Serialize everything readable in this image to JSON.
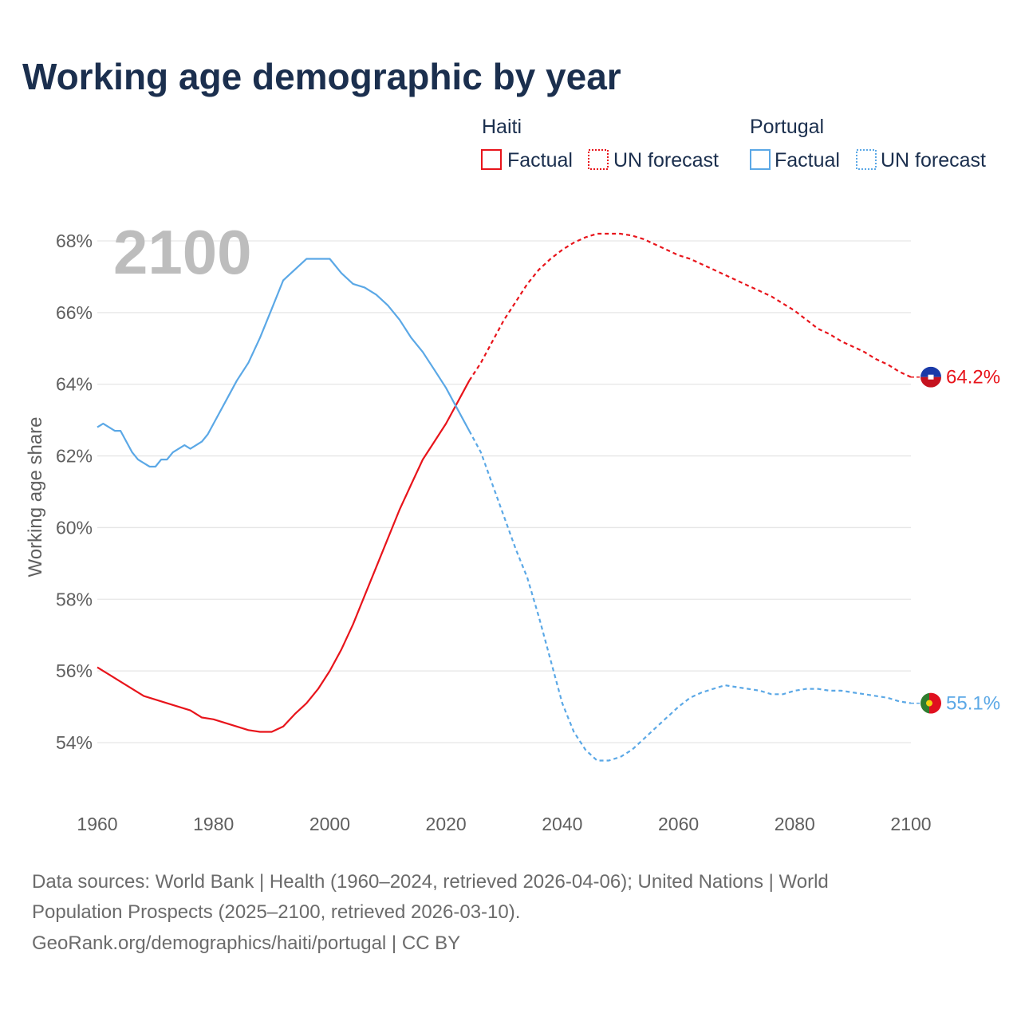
{
  "title": "Working age demographic by year",
  "year_display": "2100",
  "legend": {
    "groups": [
      {
        "name": "Haiti",
        "color": "#e8141b",
        "items": [
          "Factual",
          "UN forecast"
        ]
      },
      {
        "name": "Portugal",
        "color": "#5ba8e6",
        "items": [
          "Factual",
          "UN forecast"
        ]
      }
    ]
  },
  "y_axis_label": "Working age share",
  "end_labels": {
    "haiti": "64.2%",
    "portugal": "55.1%"
  },
  "source": {
    "line1": "Data sources: World Bank | Health (1960–2024, retrieved 2026-04-06); United Nations | World",
    "line2": "Population Prospects (2025–2100, retrieved 2026-03-10).",
    "line3": "GeoRank.org/demographics/haiti/portugal | CC BY"
  },
  "colors": {
    "haiti": "#e8141b",
    "portugal": "#5ba8e6",
    "title": "#1b2f4e",
    "grid": "#e6e6e6"
  },
  "chart_data": {
    "type": "line",
    "title": "Working age demographic by year",
    "xlabel": "",
    "ylabel": "Working age share",
    "xlim": [
      1960,
      2100
    ],
    "ylim": [
      53,
      68.2
    ],
    "x_ticks": [
      1960,
      1980,
      2000,
      2020,
      2040,
      2060,
      2080,
      2100
    ],
    "x_tick_labels": [
      "1960",
      "1980",
      "2000",
      "2020",
      "2040",
      "2060",
      "2080",
      "2100"
    ],
    "y_ticks": [
      54,
      56,
      58,
      60,
      62,
      64,
      66,
      68
    ],
    "y_tick_labels": [
      "54%",
      "56%",
      "58%",
      "60%",
      "62%",
      "64%",
      "66%",
      "68%"
    ],
    "grid": true,
    "legend_position": "top-right",
    "series": [
      {
        "name": "Haiti",
        "color": "#e8141b",
        "factual": {
          "x": [
            1960,
            1962,
            1964,
            1966,
            1968,
            1970,
            1972,
            1974,
            1976,
            1978,
            1980,
            1982,
            1984,
            1986,
            1988,
            1990,
            1992,
            1994,
            1996,
            1998,
            2000,
            2002,
            2004,
            2006,
            2008,
            2010,
            2012,
            2014,
            2016,
            2018,
            2020,
            2022,
            2024
          ],
          "y": [
            56.1,
            55.9,
            55.7,
            55.5,
            55.3,
            55.2,
            55.1,
            55.0,
            54.9,
            54.7,
            54.65,
            54.55,
            54.45,
            54.35,
            54.3,
            54.3,
            54.45,
            54.8,
            55.1,
            55.5,
            56.0,
            56.6,
            57.3,
            58.1,
            58.9,
            59.7,
            60.5,
            61.2,
            61.9,
            62.4,
            62.9,
            63.5,
            64.1
          ]
        },
        "forecast": {
          "x": [
            2024,
            2026,
            2028,
            2030,
            2032,
            2034,
            2036,
            2038,
            2040,
            2042,
            2044,
            2046,
            2048,
            2050,
            2052,
            2054,
            2056,
            2058,
            2060,
            2062,
            2064,
            2066,
            2068,
            2070,
            2072,
            2074,
            2076,
            2078,
            2080,
            2082,
            2084,
            2086,
            2088,
            2090,
            2092,
            2094,
            2096,
            2098,
            2100
          ],
          "y": [
            64.1,
            64.6,
            65.2,
            65.8,
            66.3,
            66.8,
            67.2,
            67.5,
            67.75,
            67.95,
            68.1,
            68.2,
            68.2,
            68.2,
            68.15,
            68.05,
            67.9,
            67.75,
            67.6,
            67.5,
            67.35,
            67.2,
            67.05,
            66.9,
            66.75,
            66.6,
            66.45,
            66.25,
            66.05,
            65.8,
            65.55,
            65.4,
            65.2,
            65.05,
            64.9,
            64.7,
            64.55,
            64.35,
            64.2
          ]
        },
        "end_value": 64.2
      },
      {
        "name": "Portugal",
        "color": "#5ba8e6",
        "factual": {
          "x": [
            1960,
            1961,
            1962,
            1963,
            1964,
            1965,
            1966,
            1967,
            1968,
            1969,
            1970,
            1971,
            1972,
            1973,
            1974,
            1975,
            1976,
            1977,
            1978,
            1979,
            1980,
            1982,
            1984,
            1986,
            1988,
            1990,
            1992,
            1994,
            1996,
            1998,
            2000,
            2002,
            2004,
            2006,
            2008,
            2010,
            2012,
            2014,
            2016,
            2018,
            2020,
            2022,
            2024
          ],
          "y": [
            62.8,
            62.9,
            62.8,
            62.7,
            62.7,
            62.4,
            62.1,
            61.9,
            61.8,
            61.7,
            61.7,
            61.9,
            61.9,
            62.1,
            62.2,
            62.3,
            62.2,
            62.3,
            62.4,
            62.6,
            62.9,
            63.5,
            64.1,
            64.6,
            65.3,
            66.1,
            66.9,
            67.2,
            67.5,
            67.5,
            67.5,
            67.1,
            66.8,
            66.7,
            66.5,
            66.2,
            65.8,
            65.3,
            64.9,
            64.4,
            63.9,
            63.3,
            62.7
          ]
        },
        "forecast": {
          "x": [
            2024,
            2026,
            2028,
            2030,
            2032,
            2034,
            2036,
            2038,
            2040,
            2042,
            2044,
            2046,
            2048,
            2050,
            2052,
            2054,
            2056,
            2058,
            2060,
            2062,
            2064,
            2066,
            2068,
            2070,
            2072,
            2074,
            2076,
            2078,
            2080,
            2082,
            2084,
            2086,
            2088,
            2090,
            2092,
            2094,
            2096,
            2098,
            2100
          ],
          "y": [
            62.7,
            62.1,
            61.2,
            60.3,
            59.4,
            58.6,
            57.5,
            56.3,
            55.1,
            54.3,
            53.8,
            53.5,
            53.5,
            53.6,
            53.8,
            54.1,
            54.4,
            54.7,
            55.0,
            55.25,
            55.4,
            55.5,
            55.6,
            55.55,
            55.5,
            55.45,
            55.35,
            55.35,
            55.45,
            55.5,
            55.5,
            55.45,
            55.45,
            55.4,
            55.35,
            55.3,
            55.25,
            55.15,
            55.1
          ]
        },
        "end_value": 55.1
      }
    ]
  }
}
